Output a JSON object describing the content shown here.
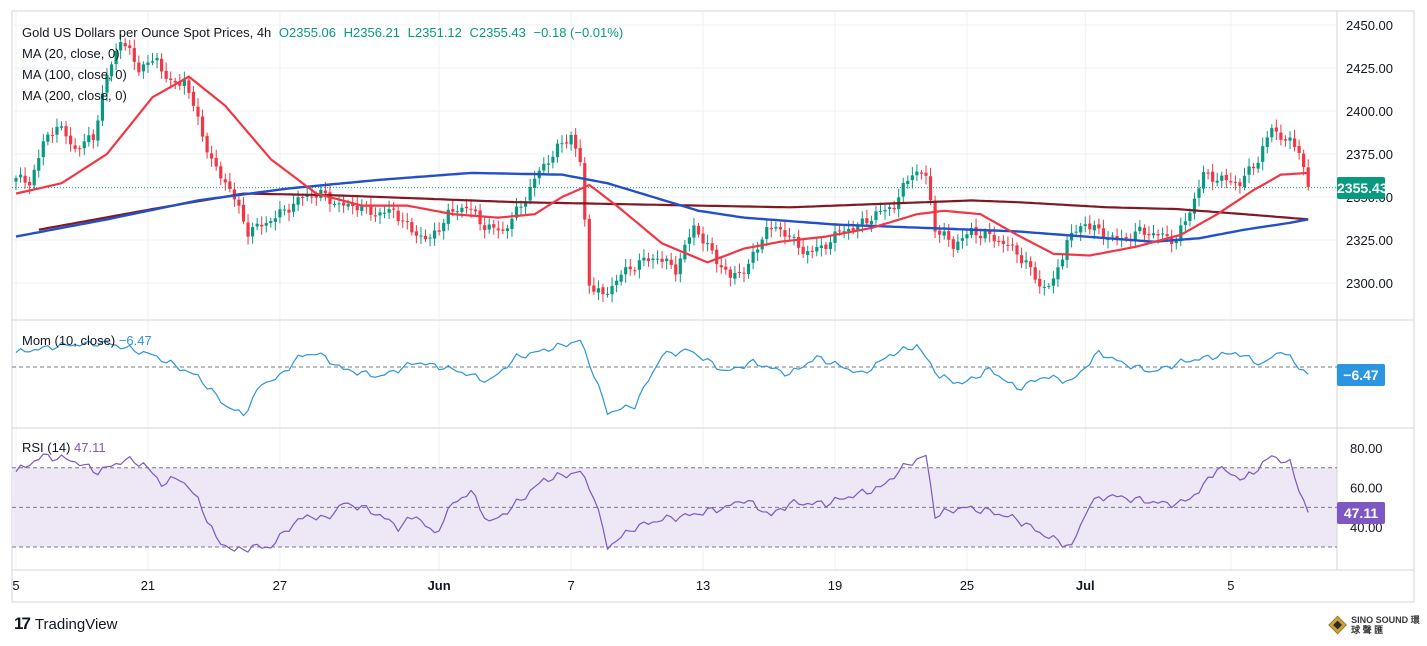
{
  "header": {
    "symbol": "Gold US Dollars per Ounce Spot Prices, 4h",
    "open": "O2355.06",
    "high": "H2356.21",
    "low": "L2351.12",
    "close": "C2355.43",
    "change": "−0.18 (−0.01%)"
  },
  "indicators": {
    "ma20": "MA (20, close, 0)",
    "ma100": "MA (100, close, 0)",
    "ma200": "MA (200, close, 0)",
    "mom_label": "Mom (10, close)",
    "mom_value": "−6.47",
    "rsi_label": "RSI (14)",
    "rsi_value": "47.11"
  },
  "axis_tags": {
    "price": "2355.43",
    "mom": "−6.47",
    "rsi": "47.11"
  },
  "footer": {
    "brand": "TradingView",
    "watermark": "SINO SOUND 環 球 聲 匯"
  },
  "colors": {
    "up": "#089981",
    "down": "#f23645",
    "ma20": "#f23645",
    "ma100": "#2350c8",
    "ma200": "#801922",
    "mom": "#2a95e0",
    "rsi": "#7e57c2",
    "rsi_band": "#ede7f6",
    "grid": "#eef0f3"
  },
  "chart_data": {
    "type": "candlestick",
    "title": "Gold US Dollars per Ounce Spot Prices, 4h",
    "x_tick_labels": [
      "5",
      "21",
      "27",
      "Jun",
      "7",
      "13",
      "19",
      "25",
      "Jul",
      "5"
    ],
    "price_axis": {
      "ticks": [
        2300,
        2325,
        2350,
        2375,
        2400,
        2425,
        2450
      ],
      "tick_labels": [
        "2300.00",
        "2325.00",
        "2350.00",
        "2375.00",
        "2400.00",
        "2425.00",
        "2450.00"
      ],
      "ylim": [
        2284,
        2456
      ],
      "last_price": 2355.43
    },
    "price_anchor_path": [
      [
        0,
        2361
      ],
      [
        3,
        2358
      ],
      [
        6,
        2381
      ],
      [
        9,
        2392
      ],
      [
        13,
        2378
      ],
      [
        17,
        2385
      ],
      [
        20,
        2420
      ],
      [
        23,
        2442
      ],
      [
        27,
        2425
      ],
      [
        31,
        2430
      ],
      [
        34,
        2415
      ],
      [
        37,
        2418
      ],
      [
        40,
        2395
      ],
      [
        43,
        2370
      ],
      [
        47,
        2355
      ],
      [
        51,
        2330
      ],
      [
        55,
        2335
      ],
      [
        59,
        2342
      ],
      [
        63,
        2350
      ],
      [
        67,
        2352
      ],
      [
        71,
        2345
      ],
      [
        75,
        2345
      ],
      [
        79,
        2340
      ],
      [
        83,
        2342
      ],
      [
        87,
        2330
      ],
      [
        91,
        2325
      ],
      [
        95,
        2340
      ],
      [
        99,
        2345
      ],
      [
        103,
        2333
      ],
      [
        107,
        2330
      ],
      [
        111,
        2345
      ],
      [
        115,
        2365
      ],
      [
        119,
        2378
      ],
      [
        122,
        2386
      ],
      [
        124,
        2370
      ],
      [
        126,
        2300
      ],
      [
        129,
        2292
      ],
      [
        133,
        2305
      ],
      [
        137,
        2312
      ],
      [
        141,
        2315
      ],
      [
        145,
        2308
      ],
      [
        149,
        2333
      ],
      [
        153,
        2317
      ],
      [
        157,
        2303
      ],
      [
        161,
        2310
      ],
      [
        165,
        2332
      ],
      [
        169,
        2330
      ],
      [
        173,
        2318
      ],
      [
        177,
        2320
      ],
      [
        181,
        2330
      ],
      [
        185,
        2333
      ],
      [
        189,
        2340
      ],
      [
        193,
        2345
      ],
      [
        197,
        2365
      ],
      [
        200,
        2362
      ],
      [
        202,
        2332
      ],
      [
        206,
        2322
      ],
      [
        210,
        2330
      ],
      [
        214,
        2327
      ],
      [
        218,
        2322
      ],
      [
        222,
        2312
      ],
      [
        225,
        2298
      ],
      [
        228,
        2300
      ],
      [
        231,
        2325
      ],
      [
        235,
        2335
      ],
      [
        239,
        2328
      ],
      [
        243,
        2325
      ],
      [
        247,
        2330
      ],
      [
        251,
        2328
      ],
      [
        255,
        2325
      ],
      [
        258,
        2342
      ],
      [
        261,
        2363
      ],
      [
        265,
        2360
      ],
      [
        269,
        2358
      ],
      [
        273,
        2372
      ],
      [
        276,
        2390
      ],
      [
        279,
        2383
      ],
      [
        282,
        2378
      ],
      [
        284,
        2355.43
      ]
    ],
    "ma20_anchor_path": [
      [
        0,
        2352
      ],
      [
        10,
        2358
      ],
      [
        20,
        2375
      ],
      [
        30,
        2408
      ],
      [
        38,
        2420
      ],
      [
        46,
        2403
      ],
      [
        56,
        2372
      ],
      [
        66,
        2352
      ],
      [
        76,
        2345
      ],
      [
        86,
        2345
      ],
      [
        96,
        2340
      ],
      [
        106,
        2338
      ],
      [
        114,
        2340
      ],
      [
        120,
        2350
      ],
      [
        126,
        2357
      ],
      [
        132,
        2345
      ],
      [
        142,
        2323
      ],
      [
        152,
        2312
      ],
      [
        160,
        2320
      ],
      [
        168,
        2324
      ],
      [
        178,
        2327
      ],
      [
        188,
        2332
      ],
      [
        198,
        2340
      ],
      [
        204,
        2342
      ],
      [
        212,
        2340
      ],
      [
        220,
        2328
      ],
      [
        228,
        2317
      ],
      [
        236,
        2316
      ],
      [
        246,
        2321
      ],
      [
        256,
        2328
      ],
      [
        264,
        2340
      ],
      [
        272,
        2354
      ],
      [
        278,
        2363
      ],
      [
        284,
        2364
      ]
    ],
    "ma100_anchor_path": [
      [
        0,
        2327
      ],
      [
        20,
        2337
      ],
      [
        40,
        2348
      ],
      [
        60,
        2355
      ],
      [
        80,
        2360
      ],
      [
        100,
        2364
      ],
      [
        120,
        2363
      ],
      [
        130,
        2358
      ],
      [
        140,
        2350
      ],
      [
        150,
        2342
      ],
      [
        160,
        2338
      ],
      [
        180,
        2334
      ],
      [
        200,
        2332
      ],
      [
        220,
        2330
      ],
      [
        240,
        2326
      ],
      [
        250,
        2324
      ],
      [
        260,
        2326
      ],
      [
        270,
        2331
      ],
      [
        280,
        2335
      ],
      [
        284,
        2337
      ]
    ],
    "ma200_anchor_path": [
      [
        5,
        2331
      ],
      [
        30,
        2343
      ],
      [
        50,
        2352
      ],
      [
        70,
        2351
      ],
      [
        90,
        2349
      ],
      [
        110,
        2347
      ],
      [
        130,
        2346
      ],
      [
        150,
        2345
      ],
      [
        170,
        2344
      ],
      [
        190,
        2346
      ],
      [
        210,
        2348
      ],
      [
        220,
        2347
      ],
      [
        240,
        2344
      ],
      [
        255,
        2343
      ],
      [
        270,
        2340
      ],
      [
        284,
        2337
      ]
    ],
    "mom_panel": {
      "zero_line": 0,
      "ylim": [
        -48,
        40
      ],
      "last": -6.47,
      "anchor_path": [
        [
          0,
          12
        ],
        [
          10,
          18
        ],
        [
          20,
          20
        ],
        [
          30,
          10
        ],
        [
          40,
          -8
        ],
        [
          46,
          -32
        ],
        [
          50,
          -40
        ],
        [
          54,
          -14
        ],
        [
          58,
          -8
        ],
        [
          62,
          8
        ],
        [
          66,
          12
        ],
        [
          72,
          -2
        ],
        [
          80,
          -8
        ],
        [
          88,
          4
        ],
        [
          96,
          -2
        ],
        [
          104,
          -12
        ],
        [
          110,
          8
        ],
        [
          118,
          16
        ],
        [
          124,
          22
        ],
        [
          127,
          -6
        ],
        [
          130,
          -38
        ],
        [
          136,
          -32
        ],
        [
          142,
          10
        ],
        [
          148,
          14
        ],
        [
          156,
          -4
        ],
        [
          162,
          4
        ],
        [
          170,
          -6
        ],
        [
          176,
          8
        ],
        [
          186,
          -6
        ],
        [
          192,
          10
        ],
        [
          198,
          18
        ],
        [
          203,
          -8
        ],
        [
          208,
          -14
        ],
        [
          214,
          -2
        ],
        [
          220,
          -18
        ],
        [
          226,
          -8
        ],
        [
          232,
          -12
        ],
        [
          238,
          12
        ],
        [
          244,
          2
        ],
        [
          250,
          -4
        ],
        [
          256,
          4
        ],
        [
          262,
          8
        ],
        [
          268,
          12
        ],
        [
          274,
          2
        ],
        [
          278,
          14
        ],
        [
          284,
          -6.47
        ]
      ]
    },
    "rsi_panel": {
      "ylim": [
        20,
        86
      ],
      "tick_labels": [
        "40.00",
        "60.00",
        "80.00"
      ],
      "ticks": [
        40,
        60,
        80
      ],
      "band": [
        30,
        70
      ],
      "mid": 50,
      "last": 47.11,
      "anchor_path": [
        [
          0,
          68
        ],
        [
          6,
          76
        ],
        [
          12,
          74
        ],
        [
          18,
          68
        ],
        [
          24,
          74
        ],
        [
          28,
          72
        ],
        [
          32,
          62
        ],
        [
          36,
          65
        ],
        [
          40,
          54
        ],
        [
          44,
          34
        ],
        [
          48,
          28
        ],
        [
          52,
          30
        ],
        [
          56,
          30
        ],
        [
          60,
          40
        ],
        [
          64,
          46
        ],
        [
          68,
          44
        ],
        [
          72,
          52
        ],
        [
          76,
          50
        ],
        [
          80,
          46
        ],
        [
          84,
          40
        ],
        [
          88,
          46
        ],
        [
          92,
          36
        ],
        [
          96,
          52
        ],
        [
          100,
          58
        ],
        [
          104,
          42
        ],
        [
          108,
          48
        ],
        [
          112,
          56
        ],
        [
          116,
          64
        ],
        [
          120,
          66
        ],
        [
          124,
          68
        ],
        [
          127,
          56
        ],
        [
          130,
          30
        ],
        [
          136,
          40
        ],
        [
          142,
          44
        ],
        [
          148,
          46
        ],
        [
          156,
          50
        ],
        [
          160,
          54
        ],
        [
          166,
          46
        ],
        [
          170,
          52
        ],
        [
          178,
          52
        ],
        [
          184,
          56
        ],
        [
          190,
          60
        ],
        [
          196,
          72
        ],
        [
          200,
          76
        ],
        [
          202,
          46
        ],
        [
          208,
          50
        ],
        [
          214,
          48
        ],
        [
          220,
          44
        ],
        [
          226,
          36
        ],
        [
          232,
          30
        ],
        [
          236,
          52
        ],
        [
          240,
          56
        ],
        [
          246,
          54
        ],
        [
          252,
          52
        ],
        [
          256,
          52
        ],
        [
          260,
          58
        ],
        [
          264,
          70
        ],
        [
          270,
          64
        ],
        [
          276,
          76
        ],
        [
          280,
          72
        ],
        [
          284,
          47.11
        ]
      ]
    }
  }
}
